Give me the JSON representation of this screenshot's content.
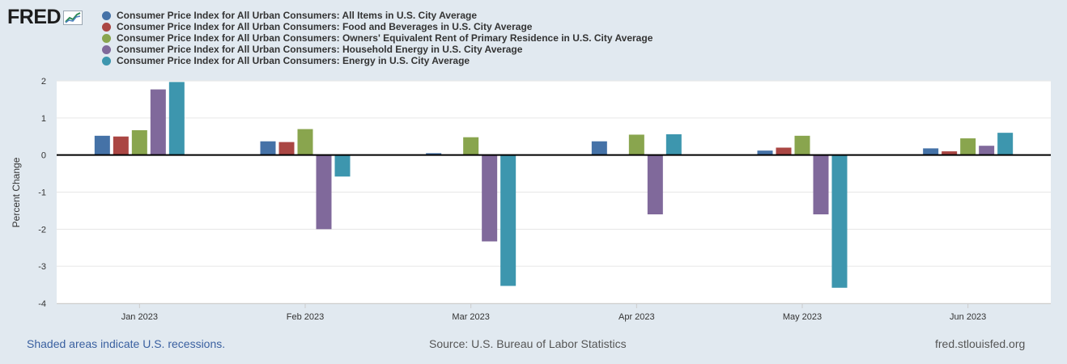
{
  "logo": {
    "text": "FRED",
    "icon": "fred-chart-icon"
  },
  "chart_data": {
    "type": "bar",
    "ylabel": "Percent Change",
    "xlabel": "",
    "ylim": [
      -4,
      2
    ],
    "yticks": [
      2,
      1,
      0,
      -1,
      -2,
      -3,
      -4
    ],
    "grid": true,
    "legend_position": "top",
    "categories": [
      "Jan 2023",
      "Feb 2023",
      "Mar 2023",
      "Apr 2023",
      "May 2023",
      "Jun 2023"
    ],
    "series": [
      {
        "name": "Consumer Price Index for All Urban Consumers: All Items in U.S. City Average",
        "color": "#4572a7",
        "values": [
          0.52,
          0.37,
          0.05,
          0.37,
          0.12,
          0.18
        ]
      },
      {
        "name": "Consumer Price Index for All Urban Consumers: Food and Beverages in U.S. City Average",
        "color": "#aa4643",
        "values": [
          0.5,
          0.35,
          0.0,
          0.0,
          0.2,
          0.1
        ]
      },
      {
        "name": "Consumer Price Index for All Urban Consumers: Owners' Equivalent Rent of Primary Residence in U.S. City Average",
        "color": "#89a54e",
        "values": [
          0.67,
          0.7,
          0.48,
          0.55,
          0.52,
          0.45
        ]
      },
      {
        "name": "Consumer Price Index for All Urban Consumers: Household Energy in U.S. City Average",
        "color": "#80699b",
        "values": [
          1.77,
          -2.0,
          -2.33,
          -1.6,
          -1.6,
          0.25
        ]
      },
      {
        "name": "Consumer Price Index for All Urban Consumers: Energy in U.S. City Average",
        "color": "#3d96ae",
        "values": [
          1.97,
          -0.58,
          -3.53,
          0.56,
          -3.58,
          0.6
        ]
      }
    ]
  },
  "footer": {
    "recession_note": "Shaded areas indicate U.S. recessions.",
    "source": "Source: U.S. Bureau of Labor Statistics",
    "site": "fred.stlouisfed.org"
  }
}
